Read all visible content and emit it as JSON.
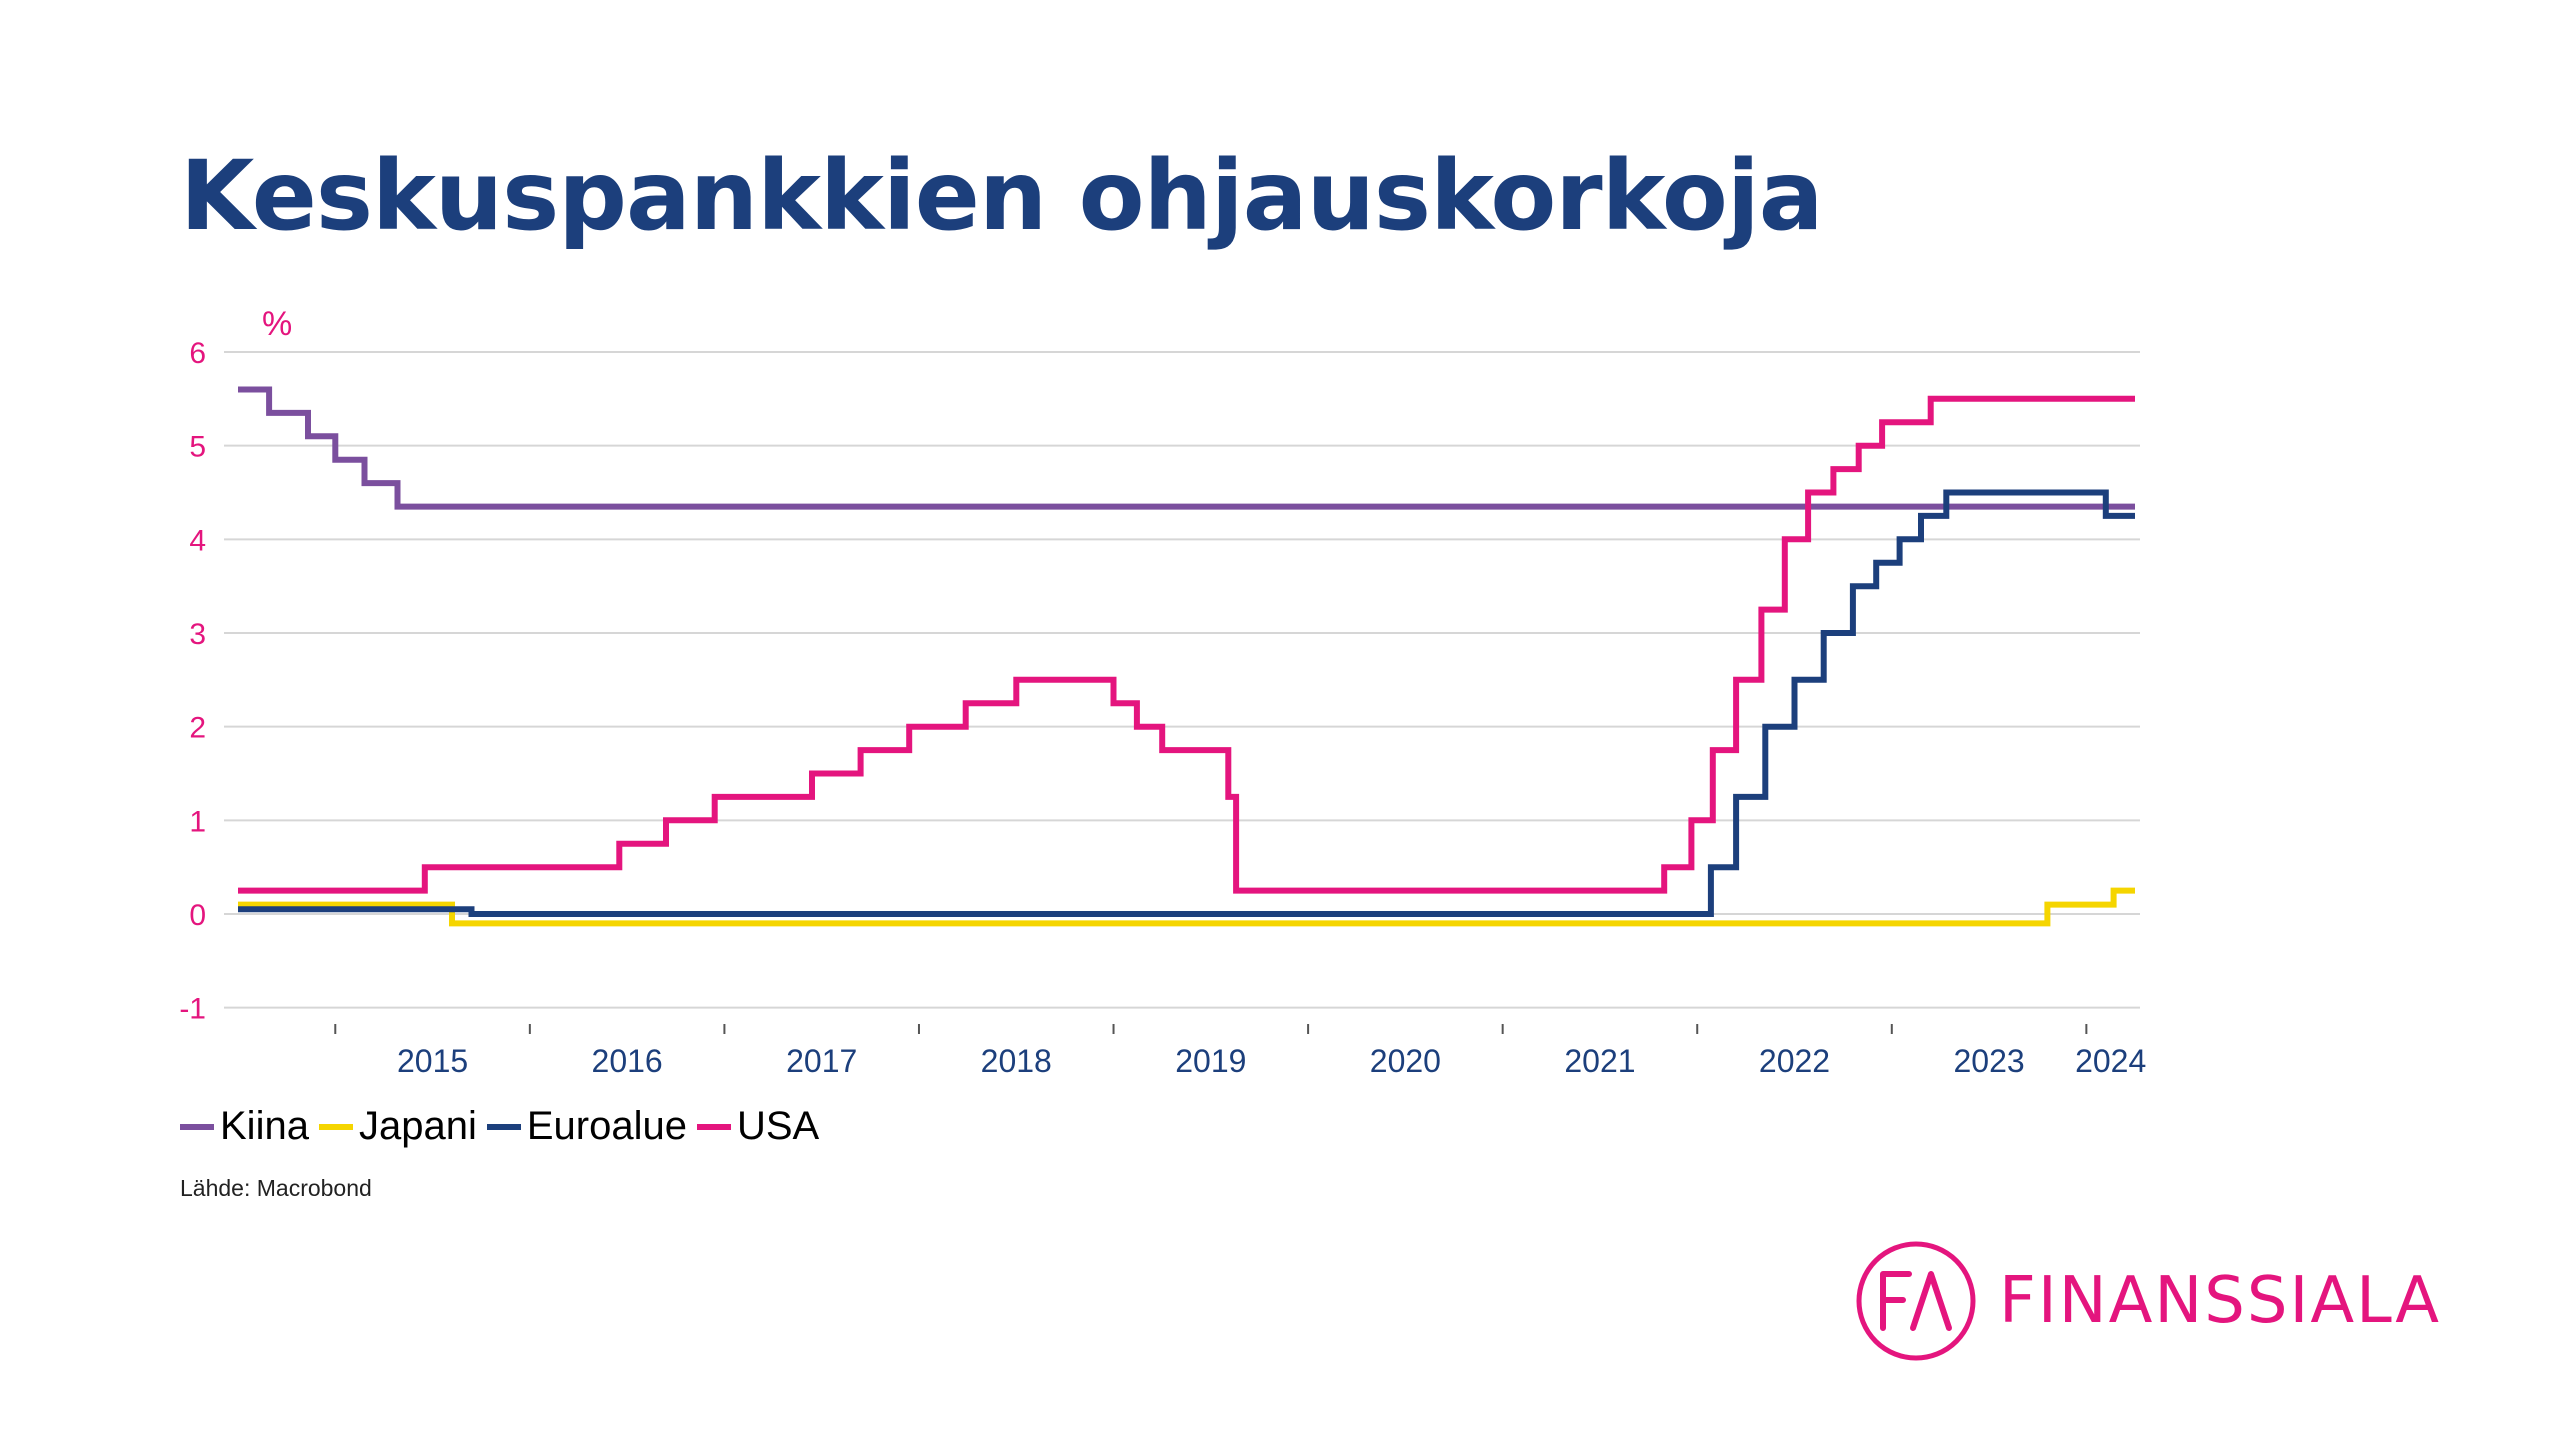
{
  "title": "Keskuspankkien ohjauskorkoja",
  "source": "Lähde: Macrobond",
  "logo": {
    "text": "FINANSSIALA",
    "mark": "FA",
    "color": "#e4157e"
  },
  "chart_data": {
    "type": "line",
    "unit": "%",
    "ylim": [
      -1,
      6
    ],
    "yticks": [
      "6",
      "5",
      "4",
      "3",
      "2",
      "1",
      "0",
      "-1"
    ],
    "xlim": [
      2014.5,
      2024.25
    ],
    "years": [
      "2015",
      "2016",
      "2017",
      "2018",
      "2019",
      "2020",
      "2021",
      "2022",
      "2023",
      "2024"
    ],
    "grid": true,
    "legend_position": "bottom-left",
    "series": [
      {
        "name": "Kiina",
        "color": "#7b4f9e",
        "points": [
          [
            2014.5,
            5.6
          ],
          [
            2014.66,
            5.35
          ],
          [
            2014.86,
            5.1
          ],
          [
            2015.0,
            4.85
          ],
          [
            2015.15,
            4.6
          ],
          [
            2015.32,
            4.35
          ],
          [
            2024.25,
            4.35
          ]
        ]
      },
      {
        "name": "Japani",
        "color": "#f5d500",
        "points": [
          [
            2014.5,
            0.1
          ],
          [
            2015.6,
            -0.1
          ],
          [
            2023.8,
            0.1
          ],
          [
            2024.14,
            0.25
          ],
          [
            2024.25,
            0.25
          ]
        ]
      },
      {
        "name": "Euroalue",
        "color": "#1c3f7c",
        "points": [
          [
            2014.5,
            0.05
          ],
          [
            2015.7,
            0.0
          ],
          [
            2022.07,
            0.5
          ],
          [
            2022.2,
            1.25
          ],
          [
            2022.35,
            2.0
          ],
          [
            2022.5,
            2.5
          ],
          [
            2022.65,
            3.0
          ],
          [
            2022.8,
            3.5
          ],
          [
            2022.92,
            3.75
          ],
          [
            2023.04,
            4.0
          ],
          [
            2023.15,
            4.25
          ],
          [
            2023.28,
            4.5
          ],
          [
            2024.0,
            4.5
          ],
          [
            2024.1,
            4.25
          ],
          [
            2024.25,
            4.25
          ]
        ]
      },
      {
        "name": "USA",
        "color": "#e4157e",
        "points": [
          [
            2014.5,
            0.25
          ],
          [
            2015.46,
            0.5
          ],
          [
            2016.46,
            0.75
          ],
          [
            2016.7,
            1.0
          ],
          [
            2016.95,
            1.25
          ],
          [
            2017.45,
            1.5
          ],
          [
            2017.7,
            1.75
          ],
          [
            2017.95,
            2.0
          ],
          [
            2018.24,
            2.25
          ],
          [
            2018.5,
            2.5
          ],
          [
            2019.0,
            2.25
          ],
          [
            2019.12,
            2.0
          ],
          [
            2019.25,
            1.75
          ],
          [
            2019.59,
            1.25
          ],
          [
            2019.63,
            0.25
          ],
          [
            2021.83,
            0.5
          ],
          [
            2021.97,
            1.0
          ],
          [
            2022.08,
            1.75
          ],
          [
            2022.2,
            2.5
          ],
          [
            2022.33,
            3.25
          ],
          [
            2022.45,
            4.0
          ],
          [
            2022.57,
            4.5
          ],
          [
            2022.7,
            4.75
          ],
          [
            2022.83,
            5.0
          ],
          [
            2022.95,
            5.25
          ],
          [
            2023.2,
            5.5
          ],
          [
            2024.25,
            5.5
          ]
        ]
      }
    ]
  }
}
